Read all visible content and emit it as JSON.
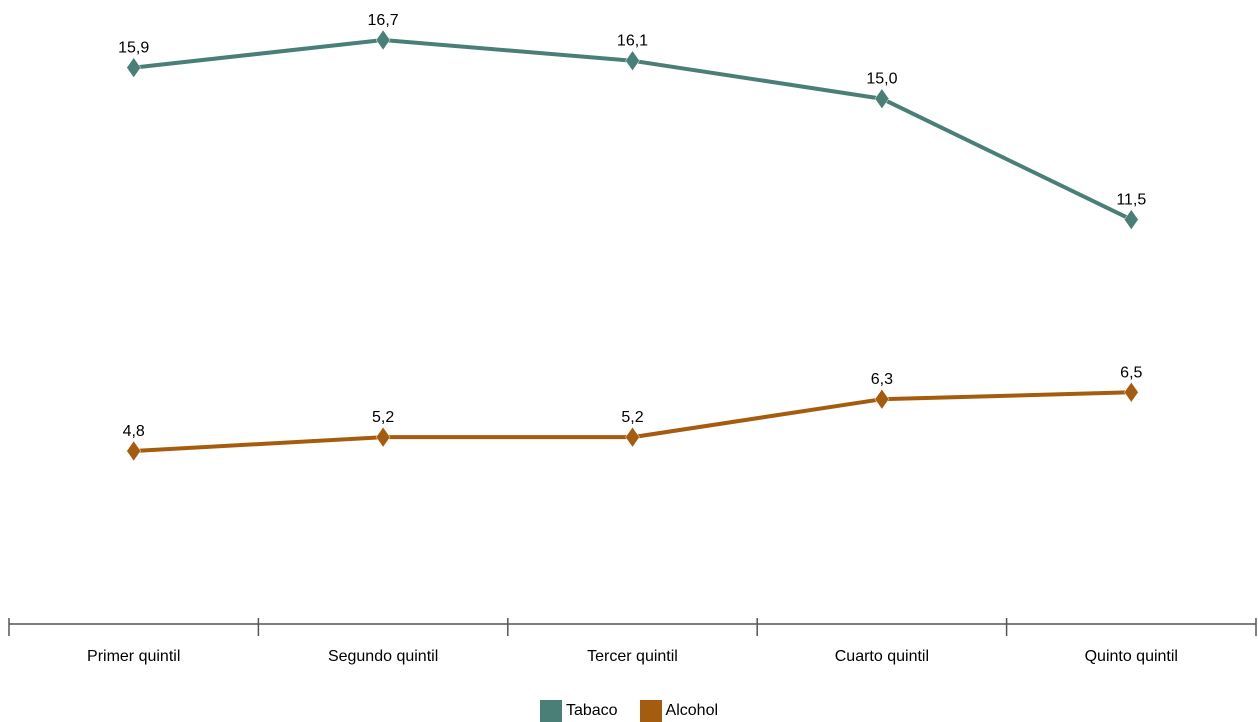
{
  "chart_data": {
    "type": "line",
    "categories": [
      "Primer quintil",
      "Segundo quintil",
      "Tercer quintil",
      "Cuarto quintil",
      "Quinto quintil"
    ],
    "series": [
      {
        "name": "Tabaco",
        "color": "#4a7f78",
        "values": [
          15.9,
          16.7,
          16.1,
          15.0,
          11.5
        ],
        "labels": [
          "15,9",
          "16,7",
          "16,1",
          "15,0",
          "11,5"
        ]
      },
      {
        "name": "Alcohol",
        "color": "#a65c0e",
        "values": [
          4.8,
          5.2,
          5.2,
          6.3,
          6.5
        ],
        "labels": [
          "4,8",
          "5,2",
          "5,2",
          "6,3",
          "6,5"
        ]
      }
    ],
    "marker": "diamond",
    "grid": false,
    "legend_position": "bottom-center",
    "title": "",
    "xlabel": "",
    "ylabel": ""
  }
}
